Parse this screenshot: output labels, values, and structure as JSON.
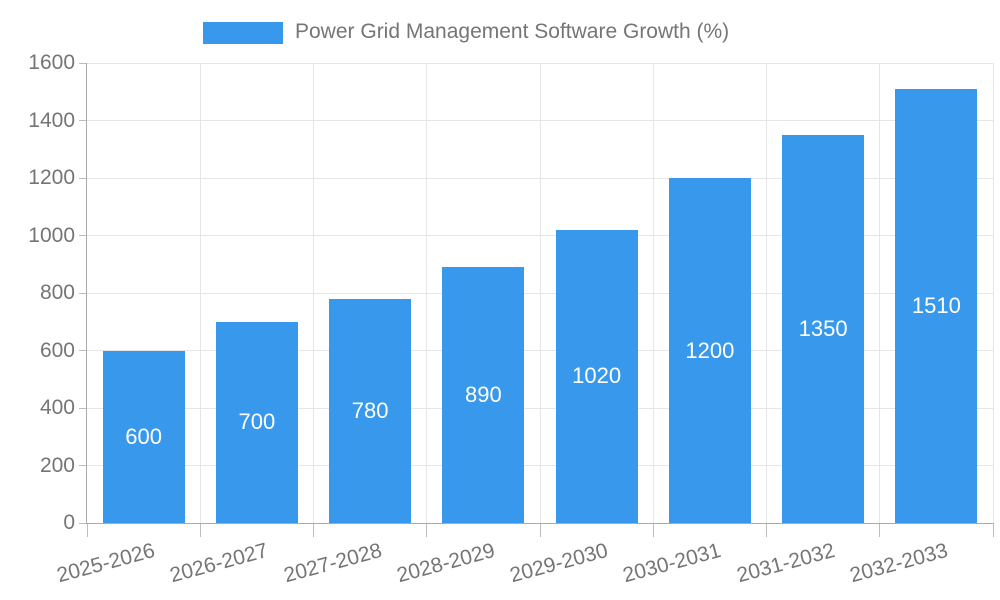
{
  "chart_data": {
    "type": "bar",
    "title": "Power Grid Management Software Growth (%)",
    "categories": [
      "2025-2026",
      "2026-2027",
      "2027-2028",
      "2028-2029",
      "2029-2030",
      "2030-2031",
      "2031-2032",
      "2032-2033"
    ],
    "values": [
      600,
      700,
      780,
      890,
      1020,
      1200,
      1350,
      1510
    ],
    "xlabel": "",
    "ylabel": "",
    "ylim": [
      0,
      1600
    ],
    "yticks": [
      0,
      200,
      400,
      600,
      800,
      1000,
      1200,
      1400,
      1600
    ],
    "grid": "on",
    "legend_position": "top-center",
    "value_label_position": "inside-center",
    "x_label_rotation_deg": -15,
    "colors": {
      "bar": "#3899ec",
      "value_label": "#ffffff",
      "axis_text": "#757575",
      "grid_line": "#e6e6e6",
      "axis_line": "#aaaaaa",
      "tick": "#bdbdbd",
      "background": "#ffffff"
    }
  }
}
